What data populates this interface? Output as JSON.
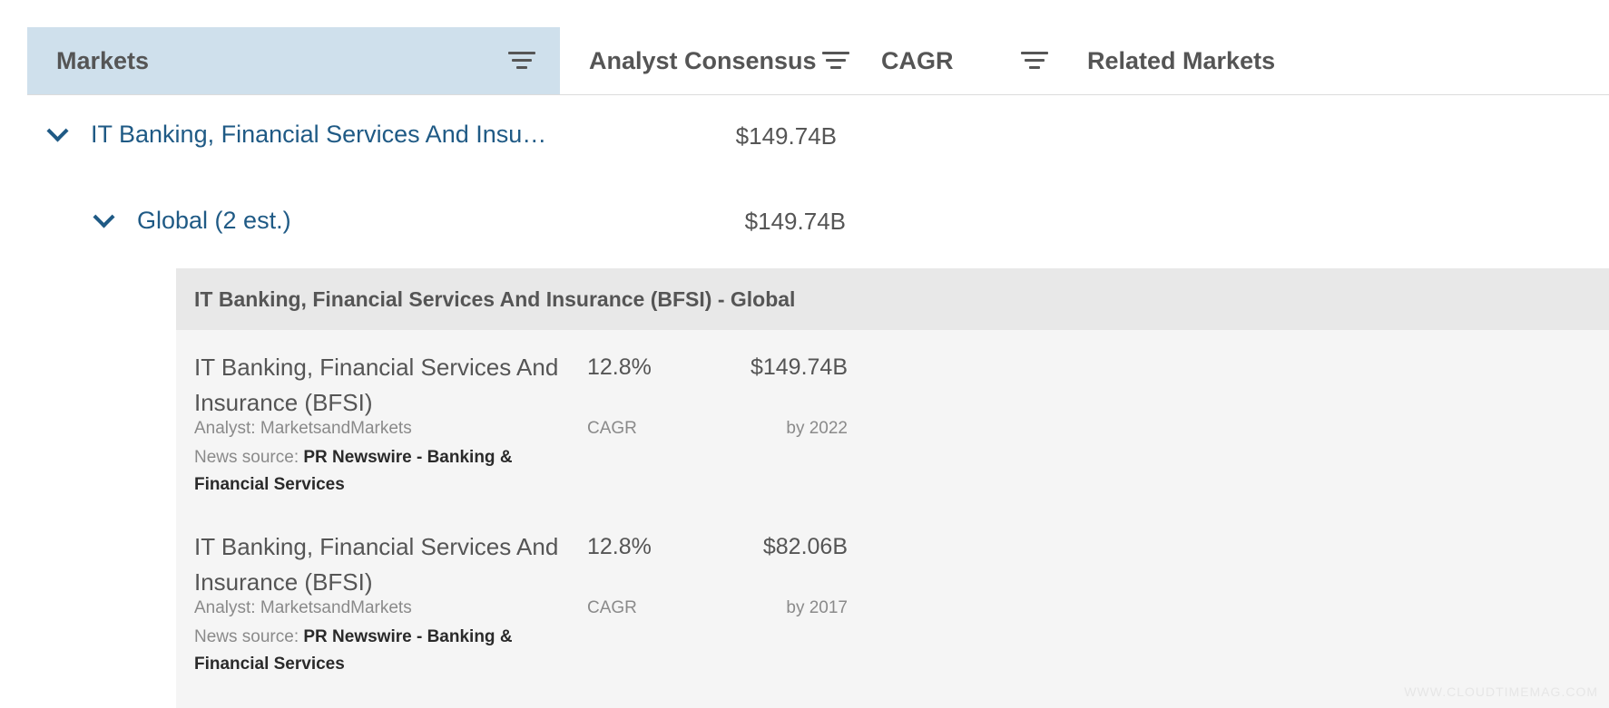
{
  "header": {
    "col_markets": "Markets",
    "col_consensus": "Analyst Consensus",
    "col_cagr": "CAGR",
    "col_related": "Related Markets"
  },
  "tree": {
    "market": {
      "label": "IT Banking, Financial Services And Insu…",
      "value": "$149.74B"
    },
    "region": {
      "label": "Global (2 est.)",
      "value": "$149.74B"
    }
  },
  "panel": {
    "title": "IT Banking, Financial Services And Insurance (BFSI) - Global",
    "entries": [
      {
        "name": "IT Banking, Financial Services And Insurance (BFSI)",
        "analyst": "Analyst: MarketsandMarkets",
        "news_prefix": "News source: ",
        "news_source": "PR Newswire - Banking & Financial Services",
        "cagr": "12.8%",
        "cagr_label": "CAGR",
        "amount": "$149.74B",
        "year": "by 2022"
      },
      {
        "name": "IT Banking, Financial Services And Insurance (BFSI)",
        "analyst": "Analyst: MarketsandMarkets",
        "news_prefix": "News source: ",
        "news_source": "PR Newswire - Banking & Financial Services",
        "cagr": "12.8%",
        "cagr_label": "CAGR",
        "amount": "$82.06B",
        "year": "by 2017"
      }
    ]
  },
  "watermark": "WWW.CLOUDTIMEMAG.COM",
  "colors": {
    "header_active_bg": "#cfe0ec",
    "link": "#1f5a85",
    "panel_bg": "#f5f5f5",
    "panel_title_bg": "#e8e8e8"
  },
  "icons": {
    "filter": "filter-icon",
    "expand": "chevron-down-icon"
  }
}
